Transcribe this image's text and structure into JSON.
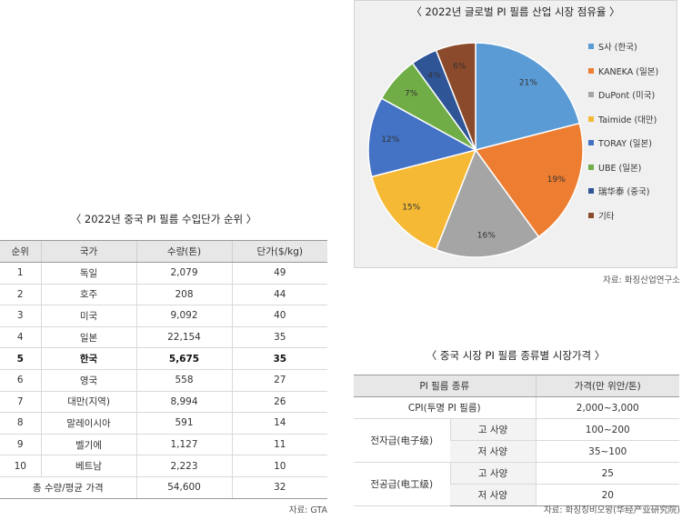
{
  "import_table": {
    "title": "〈 2022년 중국 PI 필름 수입단가 순위 〉",
    "headers": [
      "순위",
      "국가",
      "수량(톤)",
      "단가($/kg)"
    ],
    "rows": [
      [
        "1",
        "독일",
        "2,079",
        "49"
      ],
      [
        "2",
        "호주",
        "208",
        "44"
      ],
      [
        "3",
        "미국",
        "9,092",
        "40"
      ],
      [
        "4",
        "일본",
        "22,154",
        "35"
      ],
      [
        "5",
        "한국",
        "5,675",
        "35"
      ],
      [
        "6",
        "영국",
        "558",
        "27"
      ],
      [
        "7",
        "대만(지역)",
        "8,994",
        "26"
      ],
      [
        "8",
        "말레이시아",
        "591",
        "14"
      ],
      [
        "9",
        "벨기에",
        "1,127",
        "11"
      ],
      [
        "10",
        "베트남",
        "2,223",
        "10"
      ]
    ],
    "highlight_row": 4,
    "total": {
      "label": "총 수량/평균 가격",
      "quantity": "54,600",
      "price": "32"
    },
    "source": "자료: GTA"
  },
  "chart_data": {
    "type": "pie",
    "title": "〈 2022년 글로벌 PI 필름 산업 시장 점유율 〉",
    "categories": [
      "S사 (한국)",
      "KANEKA (일본)",
      "DuPont (미국)",
      "Taimide (대만)",
      "TORAY (일본)",
      "UBE (일본)",
      "瑞华泰 (중국)",
      "기타"
    ],
    "values": [
      21,
      19,
      16,
      15,
      12,
      7,
      4,
      6
    ],
    "value_labels": [
      "21%",
      "19%",
      "16%",
      "15%",
      "12%",
      "7%",
      "4%",
      "6%"
    ],
    "colors": [
      "#5b9bd5",
      "#ed7d31",
      "#a5a5a5",
      "#f5b935",
      "#4472c4",
      "#70ad47",
      "#2f5597",
      "#8b4a2b"
    ],
    "legend_position": "right",
    "source": "자료: 화징산업연구소"
  },
  "price_table": {
    "title": "〈 중국 시장 PI 필름 종류별 시장가격 〉",
    "headers": [
      "PI 필름 종류",
      "가격(만 위안/톤)"
    ],
    "cpi": {
      "label": "CPI(투명 PI 필름)",
      "price": "2,000~3,000"
    },
    "electronic": {
      "label": "전자급(电子级)",
      "high_label": "고 사양",
      "high_price": "100~200",
      "low_label": "저 사양",
      "low_price": "35~100"
    },
    "electrical": {
      "label": "전공급(电工级)",
      "high_label": "고 사양",
      "high_price": "25",
      "low_label": "저 사양",
      "low_price": "20"
    },
    "source": "자료: 화징칭비오왕(华经产业研究院)"
  }
}
